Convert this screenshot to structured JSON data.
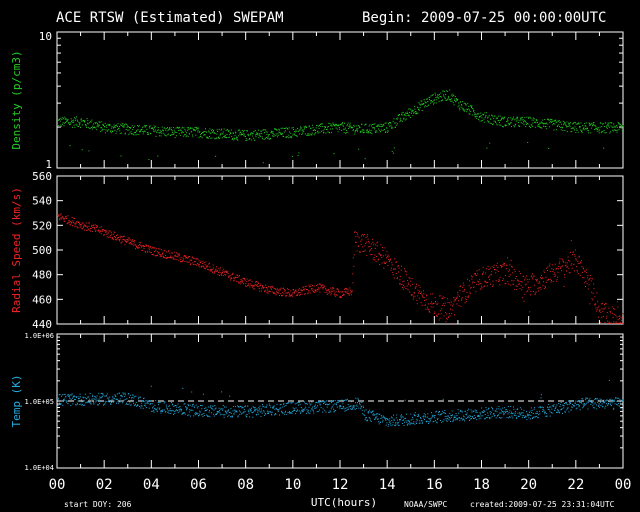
{
  "header": {
    "title": "ACE RTSW (Estimated) SWEPAM",
    "begin": "Begin: 2009-07-25 00:00:00UTC"
  },
  "footer": {
    "start_doy": "start DOY: 206",
    "xlabel": "UTC(hours)",
    "source": "NOAA/SWPC",
    "created": "created:2009-07-25 23:31:04UTC"
  },
  "chart_data": [
    {
      "type": "scatter",
      "ylabel": "Density (p/cm3)",
      "yscale": "log",
      "ylim": [
        1,
        10
      ],
      "ytick_labels": [
        "10",
        "1"
      ],
      "color": "#22cc22",
      "x_range_hours": [
        0,
        24
      ],
      "xtick_labels": [
        "00",
        "02",
        "04",
        "06",
        "08",
        "10",
        "12",
        "14",
        "16",
        "18",
        "20",
        "22",
        "00"
      ],
      "series_profile": [
        [
          0,
          2.2
        ],
        [
          1,
          2.2
        ],
        [
          2,
          2.0
        ],
        [
          3,
          1.95
        ],
        [
          4,
          1.9
        ],
        [
          5,
          1.85
        ],
        [
          6,
          1.85
        ],
        [
          7,
          1.8
        ],
        [
          8,
          1.75
        ],
        [
          9,
          1.8
        ],
        [
          10,
          1.85
        ],
        [
          11,
          1.95
        ],
        [
          12,
          2.0
        ],
        [
          13,
          1.95
        ],
        [
          14,
          2.0
        ],
        [
          15,
          2.6
        ],
        [
          16,
          3.3
        ],
        [
          16.6,
          3.5
        ],
        [
          17,
          3.0
        ],
        [
          18,
          2.4
        ],
        [
          19,
          2.2
        ],
        [
          20,
          2.2
        ],
        [
          21,
          2.1
        ],
        [
          22,
          2.0
        ],
        [
          23,
          2.0
        ],
        [
          24,
          2.0
        ]
      ]
    },
    {
      "type": "scatter",
      "ylabel": "Radial Speed (km/s)",
      "ylim": [
        440,
        560
      ],
      "yticks": [
        440,
        460,
        480,
        500,
        520,
        540,
        560
      ],
      "color": "#ee2222",
      "x_range_hours": [
        0,
        24
      ],
      "series_profile": [
        [
          0,
          528
        ],
        [
          1,
          521
        ],
        [
          2,
          515
        ],
        [
          3,
          507
        ],
        [
          4,
          500
        ],
        [
          5,
          495
        ],
        [
          6,
          490
        ],
        [
          7,
          482
        ],
        [
          8,
          474
        ],
        [
          9,
          468
        ],
        [
          10,
          465
        ],
        [
          11,
          470
        ],
        [
          12,
          465
        ],
        [
          12.5,
          467
        ],
        [
          12.6,
          508
        ],
        [
          13,
          506
        ],
        [
          14,
          492
        ],
        [
          15,
          470
        ],
        [
          15.5,
          462
        ],
        [
          16,
          455
        ],
        [
          16.7,
          452
        ],
        [
          17,
          462
        ],
        [
          18,
          478
        ],
        [
          19,
          482
        ],
        [
          20,
          470
        ],
        [
          21,
          482
        ],
        [
          22,
          492
        ],
        [
          22.7,
          468
        ],
        [
          23,
          450
        ],
        [
          23.5,
          446
        ],
        [
          24,
          446
        ]
      ]
    },
    {
      "type": "scatter",
      "ylabel": "Temp (K)",
      "yscale": "log",
      "ylim": [
        10000,
        1000000
      ],
      "ytick_labels": [
        "1.0E+06",
        "1.0E+05",
        "1.0E+04"
      ],
      "color": "#22aadd",
      "x_range_hours": [
        0,
        24
      ],
      "reference_line_K": 100000,
      "series_profile": [
        [
          0,
          105000
        ],
        [
          3,
          110000
        ],
        [
          4,
          85000
        ],
        [
          6,
          72000
        ],
        [
          8,
          70000
        ],
        [
          10,
          80000
        ],
        [
          12,
          85000
        ],
        [
          12.8,
          95000
        ],
        [
          13,
          65000
        ],
        [
          14,
          50000
        ],
        [
          15,
          55000
        ],
        [
          17,
          62000
        ],
        [
          19,
          70000
        ],
        [
          20,
          65000
        ],
        [
          21,
          75000
        ],
        [
          22,
          90000
        ],
        [
          23,
          95000
        ],
        [
          24,
          92000
        ]
      ]
    }
  ]
}
